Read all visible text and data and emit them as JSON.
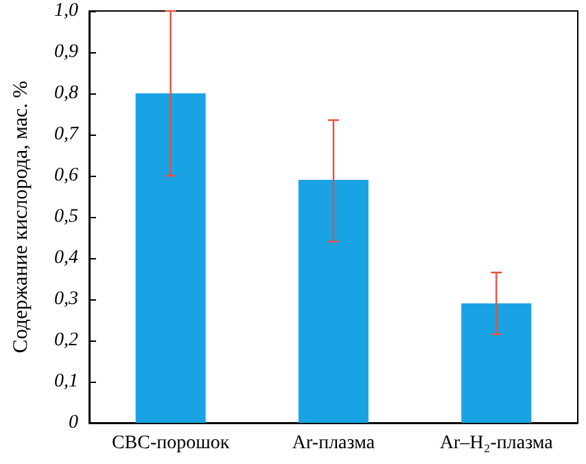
{
  "chart_data": {
    "type": "bar",
    "ylabel": "Содержание кислорода, мас. %",
    "categories": [
      "СВС-порошок",
      "Ar-плазма",
      "Ar–H₂-плазма"
    ],
    "values": [
      0.8,
      0.59,
      0.29
    ],
    "errors": [
      [
        0.6,
        1.0
      ],
      [
        0.44,
        0.735
      ],
      [
        0.215,
        0.365
      ]
    ],
    "color": "#1aa3e4",
    "ylim": [
      0,
      1
    ],
    "yticks": [
      {
        "value": 0,
        "label": "0"
      },
      {
        "value": 0.1,
        "label": "0,1"
      },
      {
        "value": 0.2,
        "label": "0,2"
      },
      {
        "value": 0.3,
        "label": "0,3"
      },
      {
        "value": 0.4,
        "label": "0,4"
      },
      {
        "value": 0.5,
        "label": "0,5"
      },
      {
        "value": 0.6,
        "label": "0,6"
      },
      {
        "value": 0.7,
        "label": "0,7"
      },
      {
        "value": 0.8,
        "label": "0,8"
      },
      {
        "value": 0.9,
        "label": "0,9"
      },
      {
        "value": 1,
        "label": "1,0"
      }
    ],
    "grid": false
  }
}
